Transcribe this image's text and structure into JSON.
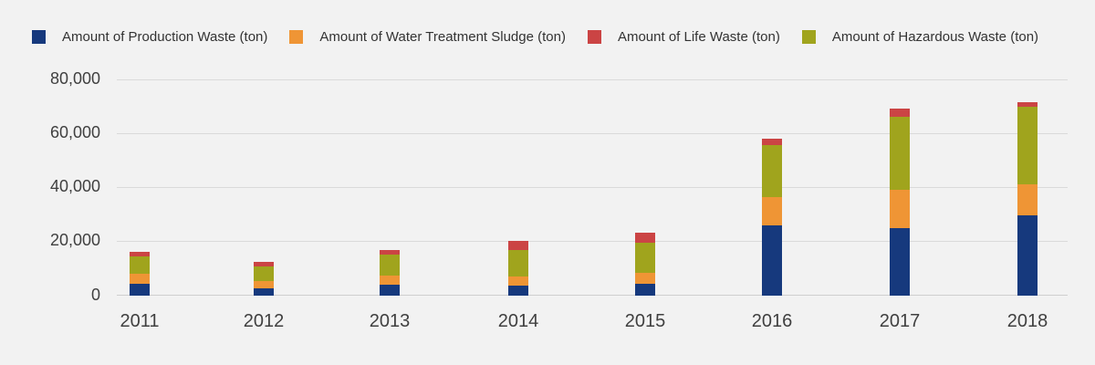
{
  "page": {
    "background": "#f2f2f2"
  },
  "legend": {
    "items": [
      {
        "label": "Amount of Production Waste (ton)",
        "color": "#16397d"
      },
      {
        "label": "Amount of Water Treatment Sludge (ton)",
        "color": "#ef9535"
      },
      {
        "label": "Amount of Life Waste (ton)",
        "color": "#cb4444"
      },
      {
        "label": "Amount of Hazardous Waste (ton)",
        "color": "#a0a41d"
      }
    ]
  },
  "chart_data": {
    "type": "bar",
    "stacked": true,
    "title": "",
    "categories": [
      "2011",
      "2012",
      "2013",
      "2014",
      "2015",
      "2016",
      "2017",
      "2018"
    ],
    "series": [
      {
        "name": "Amount of Production Waste (ton)",
        "short": "production-waste",
        "color": "#16397d",
        "values": [
          4200,
          2500,
          4000,
          3400,
          4300,
          26000,
          25000,
          29500
        ]
      },
      {
        "name": "Amount of Water Treatment Sludge (ton)",
        "short": "water-treatment-sludge",
        "color": "#ef9535",
        "values": [
          3700,
          2600,
          3400,
          3400,
          4000,
          10500,
          14000,
          11500
        ]
      },
      {
        "name": "Amount of Life Waste (ton)",
        "short": "life-waste",
        "color": "#cb4444",
        "values": [
          1700,
          1700,
          1700,
          3300,
          3500,
          2500,
          3300,
          1700
        ]
      },
      {
        "name": "Amount of Hazardous Waste (ton)",
        "short": "hazardous-waste",
        "color": "#a0a41d",
        "values": [
          6400,
          5600,
          7700,
          10000,
          11300,
          19000,
          27000,
          29000
        ]
      }
    ],
    "stack_order_bottom_to_top": [
      0,
      1,
      3,
      2
    ],
    "ylim": [
      0,
      80000
    ],
    "yticks": [
      0,
      20000,
      40000,
      60000,
      80000
    ],
    "ytick_labels": [
      "0",
      "20,000",
      "40,000",
      "60,000",
      "80,000"
    ],
    "grid": true,
    "legend_position": "top"
  }
}
